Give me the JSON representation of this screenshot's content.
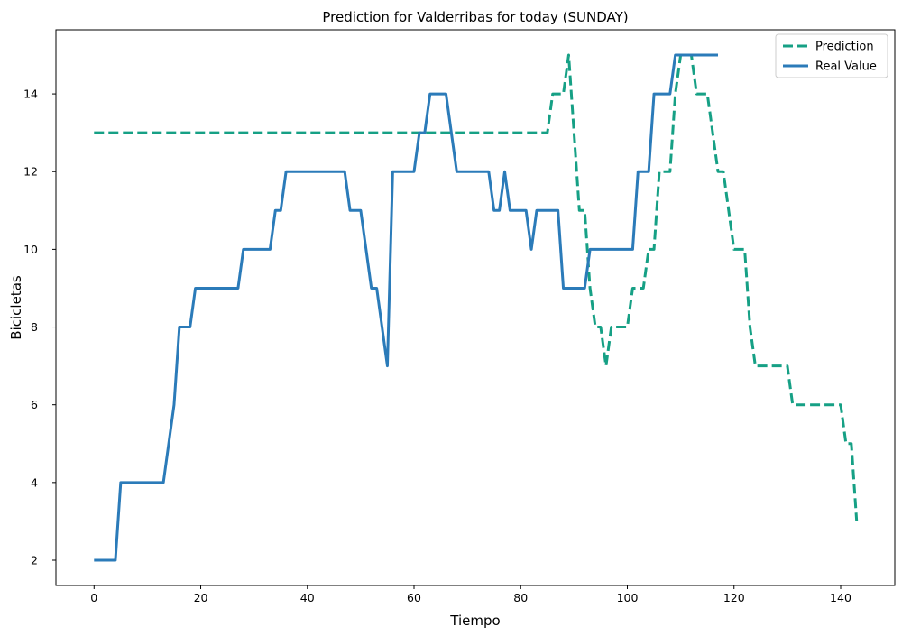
{
  "chart_data": {
    "type": "line",
    "title": "Prediction for Valderribas for today (SUNDAY)",
    "xlabel": "Tiempo",
    "ylabel": "Bicicletas",
    "xlim": [
      -7.15,
      150.15
    ],
    "ylim": [
      1.35,
      15.65
    ],
    "xticks": [
      0,
      20,
      40,
      60,
      80,
      100,
      120,
      140
    ],
    "yticks": [
      2,
      4,
      6,
      8,
      10,
      12,
      14
    ],
    "grid": false,
    "legend_position": "top-right",
    "series": [
      {
        "name": "Prediction",
        "color": "#16a085",
        "style": "dashed",
        "points": [
          [
            0,
            13
          ],
          [
            85,
            13
          ],
          [
            86,
            14
          ],
          [
            88,
            14
          ],
          [
            89,
            15
          ],
          [
            90,
            13
          ],
          [
            91,
            11
          ],
          [
            92,
            11
          ],
          [
            93,
            9
          ],
          [
            94,
            8
          ],
          [
            95,
            8
          ],
          [
            96,
            7
          ],
          [
            97,
            8
          ],
          [
            100,
            8
          ],
          [
            101,
            9
          ],
          [
            103,
            9
          ],
          [
            104,
            10
          ],
          [
            105,
            10
          ],
          [
            106,
            12
          ],
          [
            108,
            12
          ],
          [
            109,
            14
          ],
          [
            110,
            15
          ],
          [
            112,
            15
          ],
          [
            113,
            14
          ],
          [
            115,
            14
          ],
          [
            116,
            13
          ],
          [
            117,
            12
          ],
          [
            118,
            12
          ],
          [
            119,
            11
          ],
          [
            120,
            10
          ],
          [
            122,
            10
          ],
          [
            123,
            8
          ],
          [
            124,
            7
          ],
          [
            130,
            7
          ],
          [
            131,
            6
          ],
          [
            140,
            6
          ],
          [
            141,
            5
          ],
          [
            142,
            5
          ],
          [
            143,
            3
          ]
        ]
      },
      {
        "name": "Real Value",
        "color": "#2b7bb9",
        "style": "solid",
        "points": [
          [
            0,
            2
          ],
          [
            4,
            2
          ],
          [
            5,
            4
          ],
          [
            13,
            4
          ],
          [
            14,
            5
          ],
          [
            15,
            6
          ],
          [
            16,
            8
          ],
          [
            18,
            8
          ],
          [
            19,
            9
          ],
          [
            27,
            9
          ],
          [
            28,
            10
          ],
          [
            33,
            10
          ],
          [
            34,
            11
          ],
          [
            35,
            11
          ],
          [
            36,
            12
          ],
          [
            47,
            12
          ],
          [
            48,
            11
          ],
          [
            50,
            11
          ],
          [
            51,
            10
          ],
          [
            52,
            9
          ],
          [
            53,
            9
          ],
          [
            54,
            8
          ],
          [
            55,
            7
          ],
          [
            56,
            12
          ],
          [
            60,
            12
          ],
          [
            61,
            13
          ],
          [
            62,
            13
          ],
          [
            63,
            14
          ],
          [
            66,
            14
          ],
          [
            67,
            13
          ],
          [
            68,
            12
          ],
          [
            74,
            12
          ],
          [
            75,
            11
          ],
          [
            76,
            11
          ],
          [
            77,
            12
          ],
          [
            78,
            11
          ],
          [
            81,
            11
          ],
          [
            82,
            10
          ],
          [
            83,
            11
          ],
          [
            87,
            11
          ],
          [
            88,
            9
          ],
          [
            92,
            9
          ],
          [
            93,
            10
          ],
          [
            101,
            10
          ],
          [
            102,
            12
          ],
          [
            104,
            12
          ],
          [
            105,
            14
          ],
          [
            108,
            14
          ],
          [
            109,
            15
          ],
          [
            117,
            15
          ]
        ]
      }
    ]
  }
}
